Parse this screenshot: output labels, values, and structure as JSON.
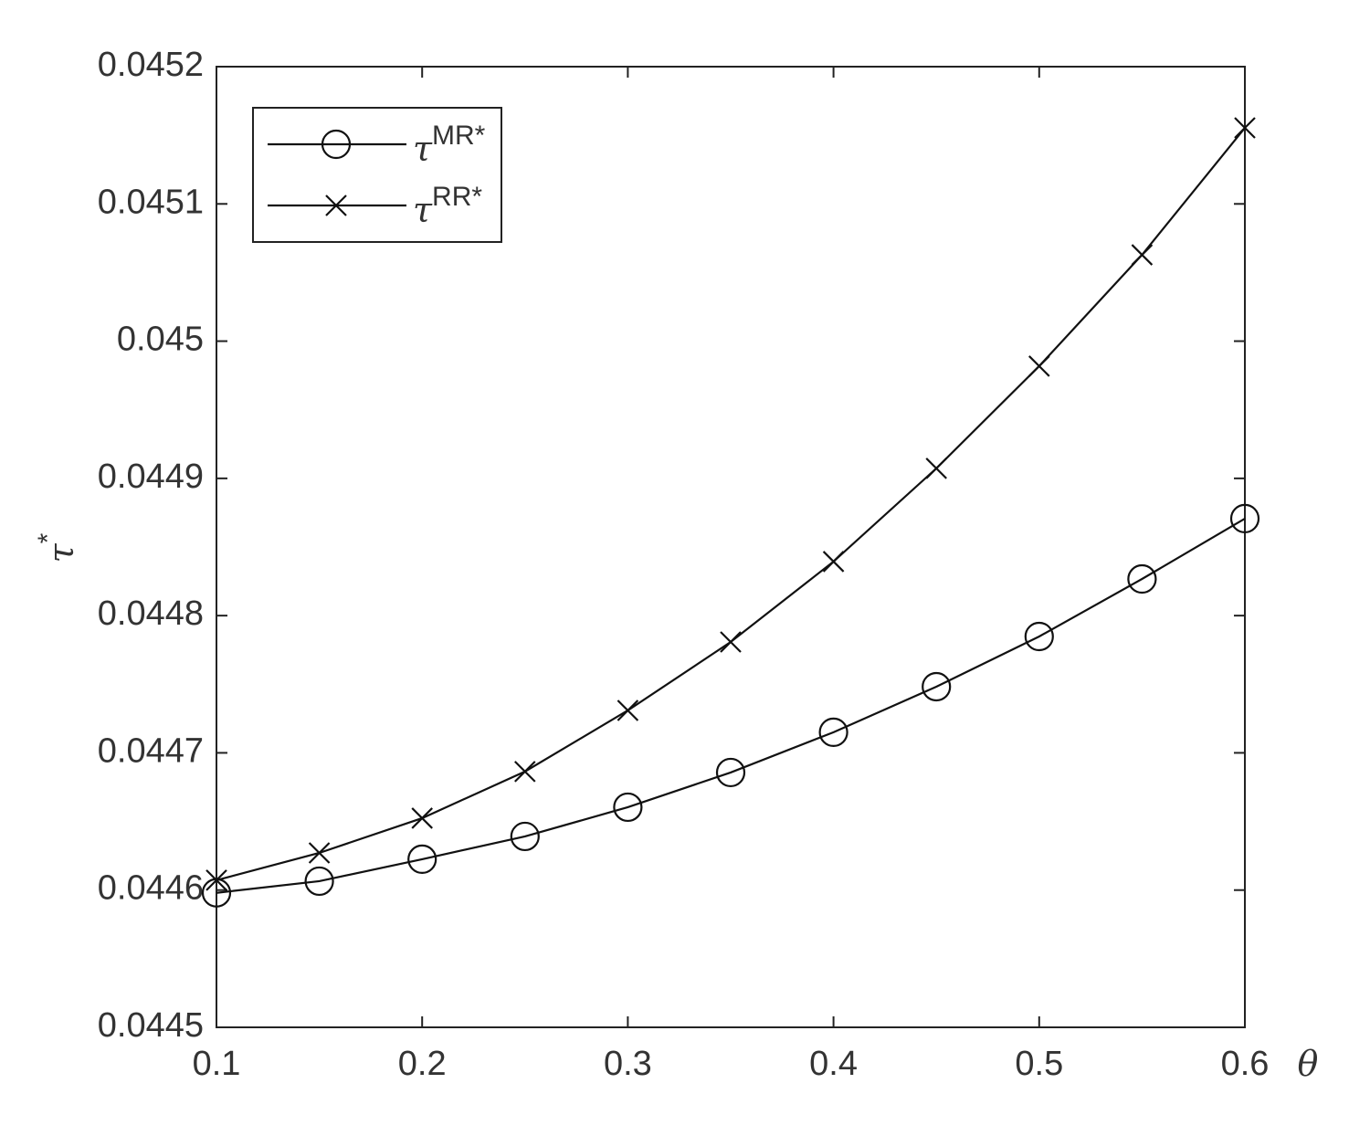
{
  "chart_data": {
    "type": "line",
    "x_label": "θ",
    "y_label": "τ*",
    "x": [
      0.1,
      0.15,
      0.2,
      0.25,
      0.3,
      0.35,
      0.4,
      0.45,
      0.5,
      0.55,
      0.6
    ],
    "series": [
      {
        "name": "τMR*",
        "color": "#111111",
        "marker": "circle",
        "values": [
          0.044598,
          0.0446065,
          0.0446225,
          0.0446391,
          0.0446604,
          0.0446857,
          0.044715,
          0.0447482,
          0.0447848,
          0.0448267,
          0.0448707
        ]
      },
      {
        "name": "τRR*",
        "color": "#111111",
        "marker": "x",
        "values": [
          0.0446072,
          0.0446271,
          0.0446524,
          0.0446864,
          0.0447309,
          0.0447808,
          0.0448394,
          0.0449073,
          0.0449818,
          0.0450629,
          0.0451554
        ]
      }
    ],
    "xlim": [
      0.1,
      0.6
    ],
    "xticks": [
      0.1,
      0.2,
      0.3,
      0.4,
      0.5,
      0.6
    ],
    "ylim": [
      0.0445,
      0.0452
    ],
    "yticks": [
      0.0445,
      0.0446,
      0.0447,
      0.0448,
      0.0449,
      0.045,
      0.0451,
      0.0452
    ],
    "legend": "upper left",
    "grid": false
  }
}
